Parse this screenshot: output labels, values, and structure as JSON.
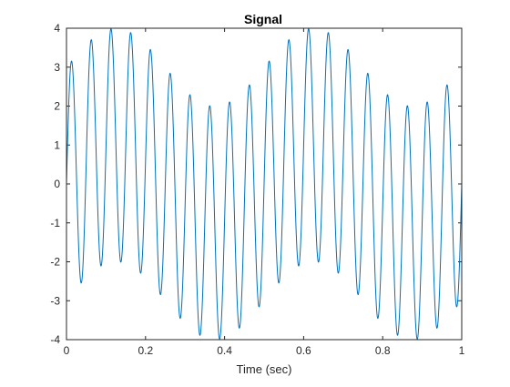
{
  "chart_data": {
    "type": "line",
    "title": "Signal",
    "xlabel": "Time (sec)",
    "ylabel": "",
    "xlim": [
      0,
      1
    ],
    "ylim": [
      -4,
      4
    ],
    "xticks": [
      "0",
      "0.2",
      "0.4",
      "0.6",
      "0.8",
      "1"
    ],
    "yticks": [
      "-4",
      "-3",
      "-2",
      "-1",
      "0",
      "1",
      "2",
      "3",
      "4"
    ],
    "grid": false,
    "series": [
      {
        "name": "",
        "color": "#0072BD",
        "model": "sum_of_sines",
        "components": [
          {
            "amplitude": 1,
            "frequency_hz": 2
          },
          {
            "amplitude": 3,
            "frequency_hz": 20
          }
        ],
        "t_start": 0,
        "t_end": 1,
        "samples": 1000
      }
    ]
  }
}
